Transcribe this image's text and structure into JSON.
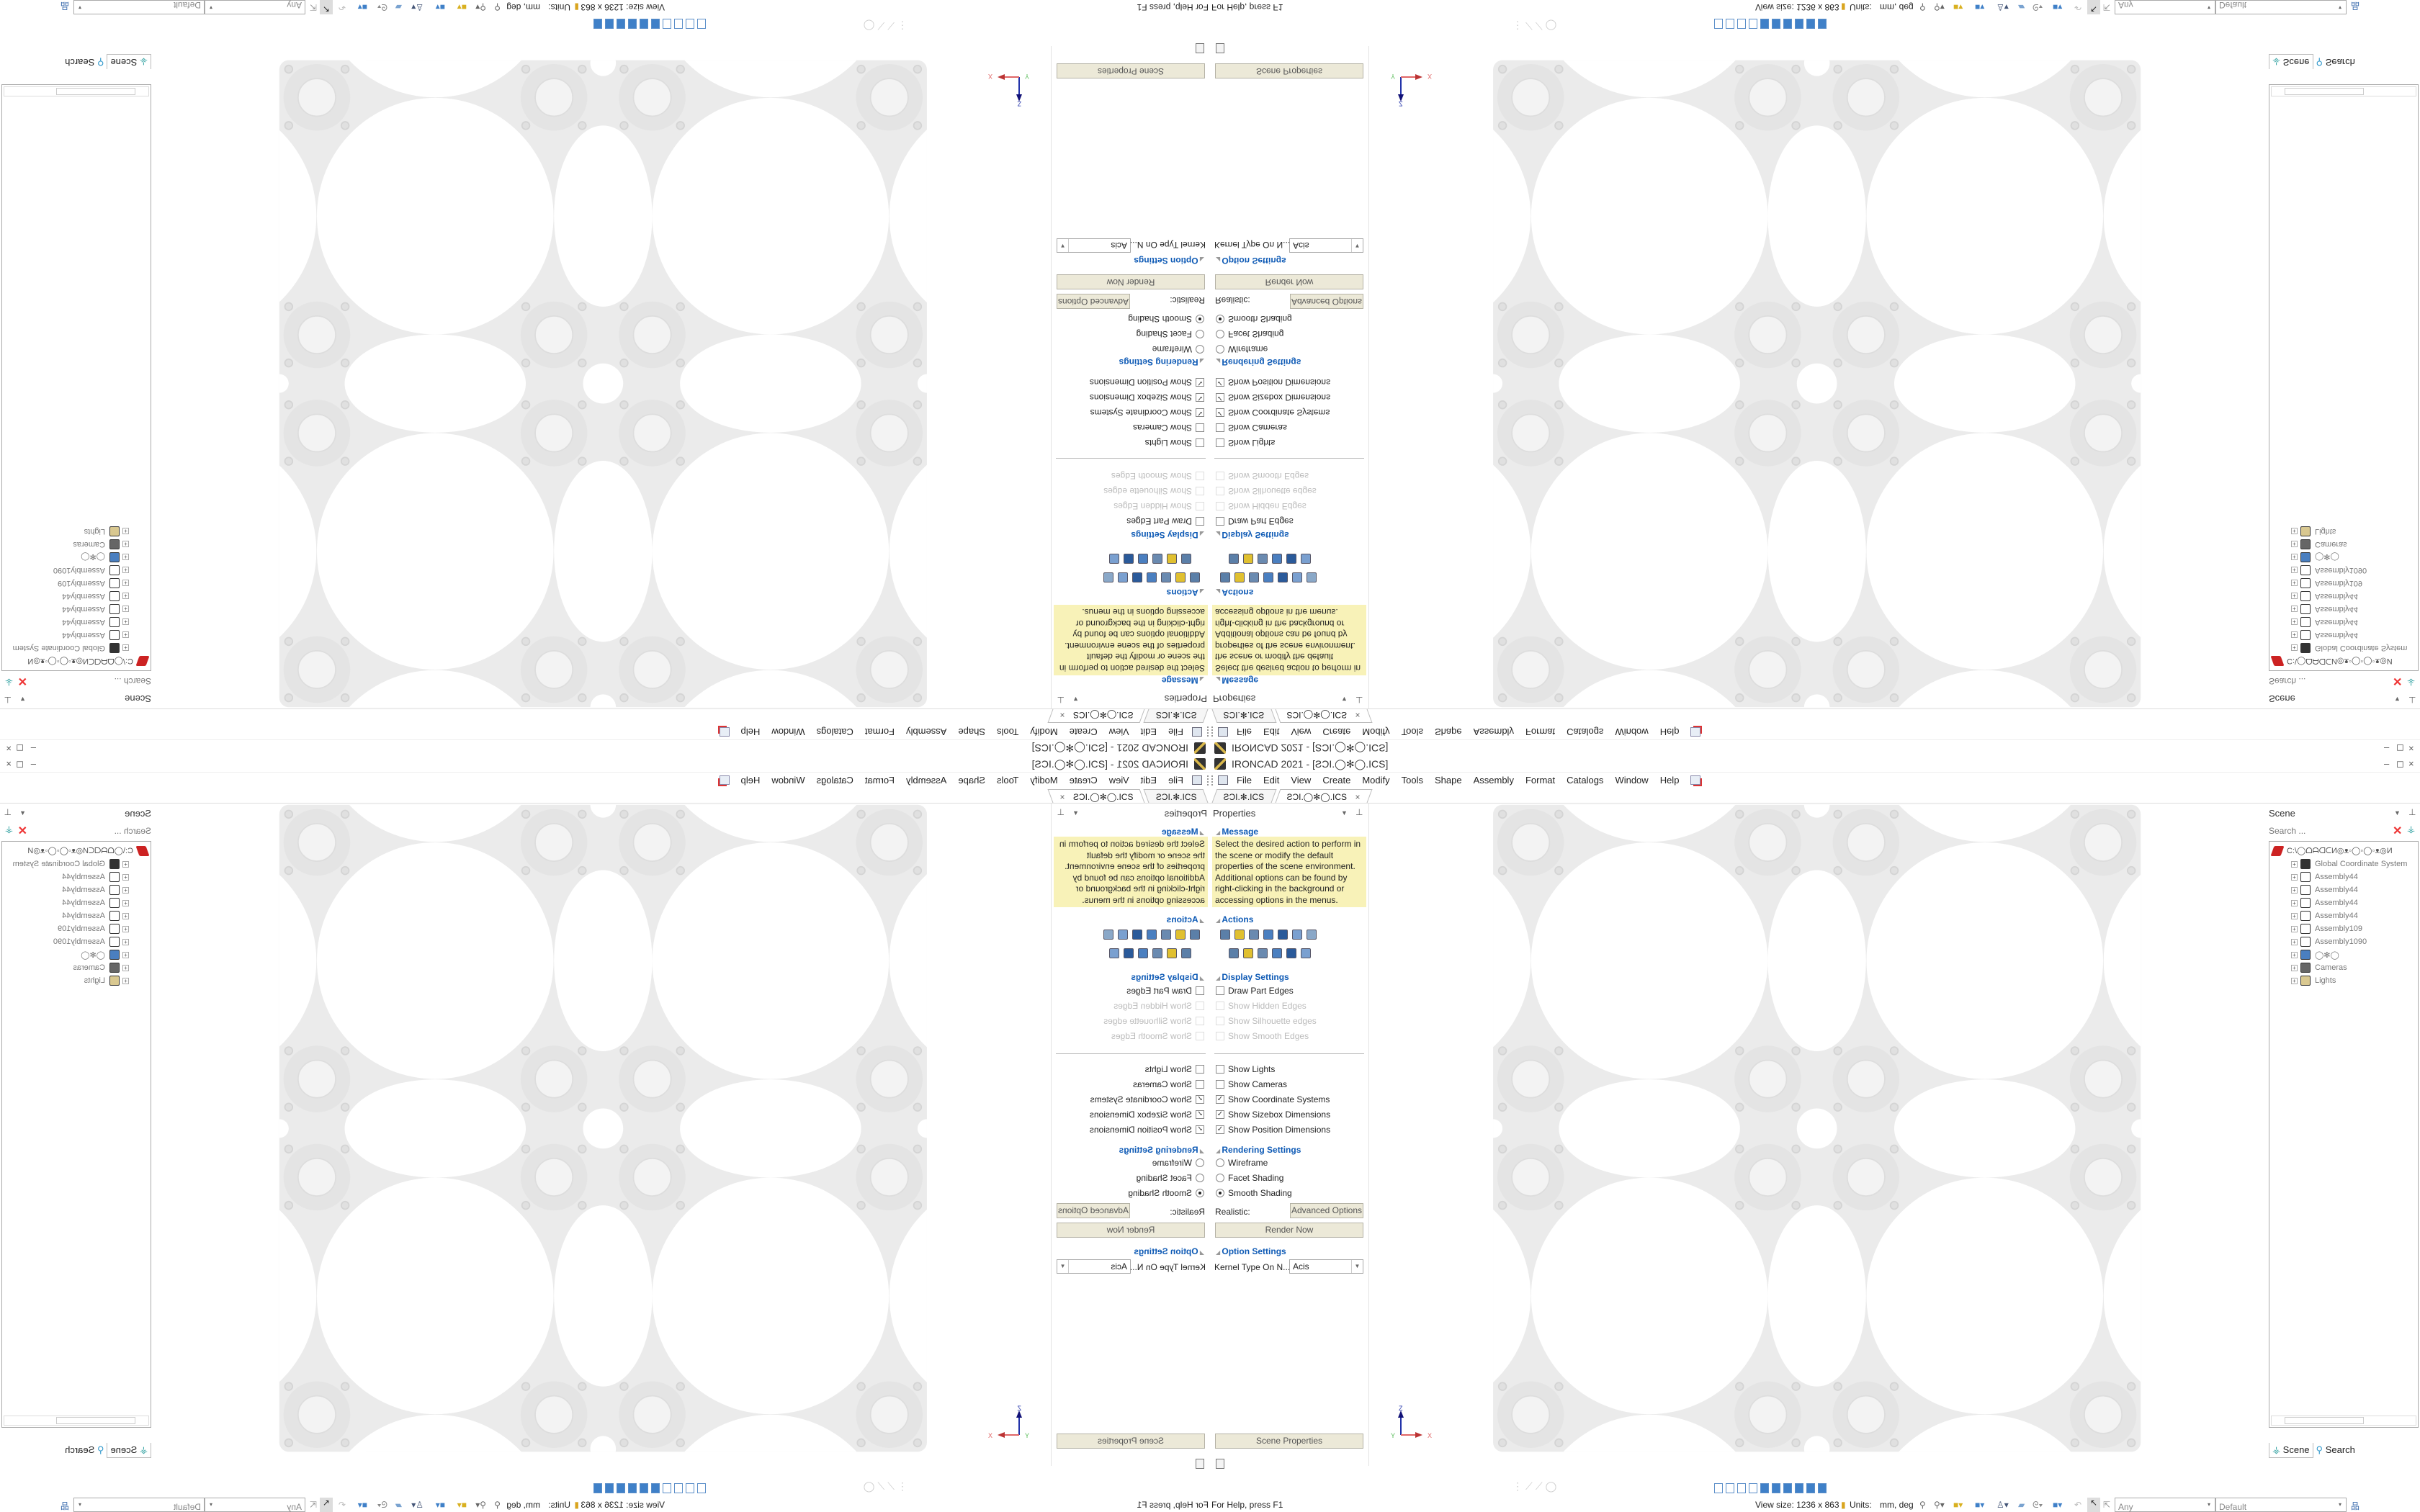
{
  "window": {
    "title": "IRONCAD 2021 - [ƧƆI.◯✻◯.ICS]",
    "controls": [
      "–",
      "◻",
      "×"
    ]
  },
  "menu": {
    "items": [
      "File",
      "Edit",
      "View",
      "Create",
      "Modify",
      "Tools",
      "Shape",
      "Assembly",
      "Format",
      "Catalogs",
      "Window",
      "Help"
    ]
  },
  "tabs": [
    {
      "label": "ƧƆI.✻.ICS",
      "active": false
    },
    {
      "label": "ƧƆI.◯✻◯.ICS",
      "active": true,
      "close": "×"
    }
  ],
  "properties": {
    "title": "Properties",
    "message_header": "Message",
    "message": "Select the desired action to perform in the scene or modify the default properties of the scene environment. Additional options can be found by right-clicking in the background or accessing options in the menus.",
    "actions_header": "Actions",
    "action_icons_row1": [
      "list-icon",
      "part-icon",
      "camera-icon",
      "shape-icon",
      "shield-icon",
      "edit-icon",
      "chart-icon"
    ],
    "action_icons_row2": [
      "box-icon",
      "gear-icon",
      "calendar-icon",
      "assembly-icon",
      "triad-icon",
      "layers-icon"
    ],
    "display_header": "Display Settings",
    "display_edges": [
      {
        "label": "Draw Part Edges",
        "checked": false,
        "enabled": true
      },
      {
        "label": "Show Hidden Edges",
        "checked": false,
        "enabled": false
      },
      {
        "label": "Show Silhouette edges",
        "checked": false,
        "enabled": false
      },
      {
        "label": "Show Smooth Edges",
        "checked": false,
        "enabled": false
      }
    ],
    "display_show": [
      {
        "label": "Show Lights",
        "checked": false
      },
      {
        "label": "Show Cameras",
        "checked": false
      },
      {
        "label": "Show Coordinate Systems",
        "checked": true
      },
      {
        "label": "Show Sizebox Dimensions",
        "checked": true
      },
      {
        "label": "Show Position Dimensions",
        "checked": true
      }
    ],
    "rendering_header": "Rendering Settings",
    "rendering": [
      {
        "label": "Wireframe",
        "selected": false
      },
      {
        "label": "Facet Shading",
        "selected": false
      },
      {
        "label": "Smooth Shading",
        "selected": true
      }
    ],
    "realistic_label": "Realistic:",
    "advanced_button": "Advanced Options",
    "render_button": "Render Now",
    "option_header": "Option Settings",
    "kernel_label": "Kernel Type On N...",
    "kernel_value": "Acis",
    "scene_properties_button": "Scene Properties"
  },
  "viewport": {
    "axes": {
      "z": "Z",
      "x": "X",
      "y": "Y"
    }
  },
  "scene": {
    "title": "Scene",
    "search_placeholder": "Search ...",
    "root": "C:\\◯ᗝᗩᗡᑕИ◎ᴥ◦◯◦◯◦ᴥ◎И",
    "items": [
      {
        "label": "Global Coordinate System",
        "icon": "coordinate-system-icon"
      },
      {
        "label": "Assembly44",
        "icon": "assembly-icon"
      },
      {
        "label": "Assembly44",
        "icon": "assembly-icon"
      },
      {
        "label": "Assembly44",
        "icon": "assembly-icon"
      },
      {
        "label": "Assembly44",
        "icon": "assembly-icon"
      },
      {
        "label": "Assembly109",
        "icon": "assembly-icon"
      },
      {
        "label": "Assembly1090",
        "icon": "assembly-icon"
      },
      {
        "label": "◯✻◯",
        "icon": "part-icon"
      },
      {
        "label": "Cameras",
        "icon": "camera-icon"
      },
      {
        "label": "Lights",
        "icon": "light-icon"
      }
    ],
    "bottom_tabs": [
      "Scene",
      "Search"
    ]
  },
  "status": {
    "help": "For Help, press F1",
    "view_size": "View size: 1236 x 863",
    "units_label": "Units:",
    "units_value": "mm, deg",
    "filter": "Any",
    "style": "Default"
  },
  "colors": {
    "accent": "#0e5ab5",
    "message_bg": "#f8f2b8",
    "button_bg": "#ece9d8",
    "part": "#ececec"
  }
}
